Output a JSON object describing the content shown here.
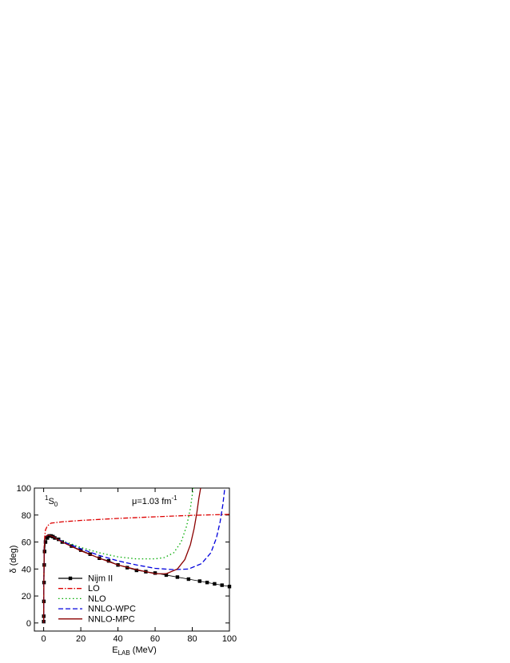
{
  "chart_data": {
    "type": "line",
    "panel_label": {
      "sup": "1",
      "main": "S",
      "sub": "0"
    },
    "annotation": {
      "main": "μ=1.03 fm",
      "sup": "-1"
    },
    "xlabel": {
      "main": "E",
      "sub": "LAB",
      "rest": " (MeV)"
    },
    "ylabel": "δ (deg)",
    "xlim": [
      -5,
      100
    ],
    "ylim": [
      -6,
      100
    ],
    "xticks": [
      0,
      20,
      40,
      60,
      80,
      100
    ],
    "yticks": [
      0,
      20,
      40,
      60,
      80,
      100
    ],
    "legend": "lower left",
    "series": [
      {
        "name": "Nijm II",
        "color": "#000000",
        "dash": "solid",
        "marker": "square",
        "x": [
          0.01,
          0.05,
          0.1,
          0.2,
          0.3,
          0.5,
          1,
          2,
          3,
          4,
          5,
          6,
          8,
          10,
          15,
          20,
          25,
          30,
          35,
          40,
          45,
          50,
          55,
          60,
          66,
          72,
          78,
          84,
          88,
          92,
          96,
          100
        ],
        "values": [
          1,
          5,
          16,
          30,
          43,
          53,
          60,
          63,
          64.5,
          64.5,
          64,
          63,
          62,
          60,
          57,
          54,
          51,
          48,
          46,
          43,
          41,
          39,
          38,
          37,
          35.5,
          34,
          32.5,
          31,
          30,
          29,
          28,
          27
        ]
      },
      {
        "name": "LO",
        "color": "#dd0000",
        "dash": "dashdot",
        "x": [
          0,
          0.1,
          0.3,
          0.6,
          1,
          2,
          4,
          10,
          20,
          40,
          60,
          80,
          100
        ],
        "values": [
          0,
          30,
          55,
          65,
          69,
          72,
          74,
          75,
          76,
          77.5,
          78.7,
          79.8,
          80.5
        ]
      },
      {
        "name": "NLO",
        "color": "#00aa00",
        "dash": "dot",
        "x": [
          0,
          0.1,
          0.3,
          0.6,
          1,
          2,
          3,
          5,
          10,
          20,
          30,
          40,
          50,
          60,
          65,
          70,
          74,
          77,
          79,
          80.5
        ],
        "values": [
          0,
          30,
          55,
          62,
          64,
          65,
          65,
          64,
          61,
          56,
          52,
          49,
          47.5,
          47.5,
          48.5,
          52,
          60,
          72,
          85,
          100
        ]
      },
      {
        "name": "NNLO-WPC",
        "color": "#0000dd",
        "dash": "dash",
        "x": [
          0,
          0.1,
          0.3,
          0.6,
          1,
          2,
          3,
          5,
          10,
          20,
          30,
          40,
          50,
          60,
          70,
          78,
          85,
          90,
          93,
          95,
          96.5,
          97.5
        ],
        "values": [
          0,
          30,
          55,
          62,
          64,
          65,
          65,
          64,
          60.5,
          55,
          50,
          46,
          43,
          40.5,
          39.5,
          40,
          44,
          52,
          63,
          75,
          88,
          100
        ]
      },
      {
        "name": "NNLO-MPC",
        "color": "#8b0000",
        "dash": "solid",
        "x": [
          0,
          0.1,
          0.3,
          0.6,
          1,
          2,
          3,
          5,
          10,
          20,
          30,
          40,
          50,
          60,
          66,
          72,
          76,
          79,
          81,
          82.5,
          83.5,
          84.5
        ],
        "values": [
          0,
          30,
          55,
          62,
          64,
          65,
          65,
          64,
          60,
          53.5,
          48,
          43,
          39.5,
          36.5,
          36.5,
          40,
          47,
          58,
          70,
          82,
          92,
          100
        ]
      }
    ]
  }
}
